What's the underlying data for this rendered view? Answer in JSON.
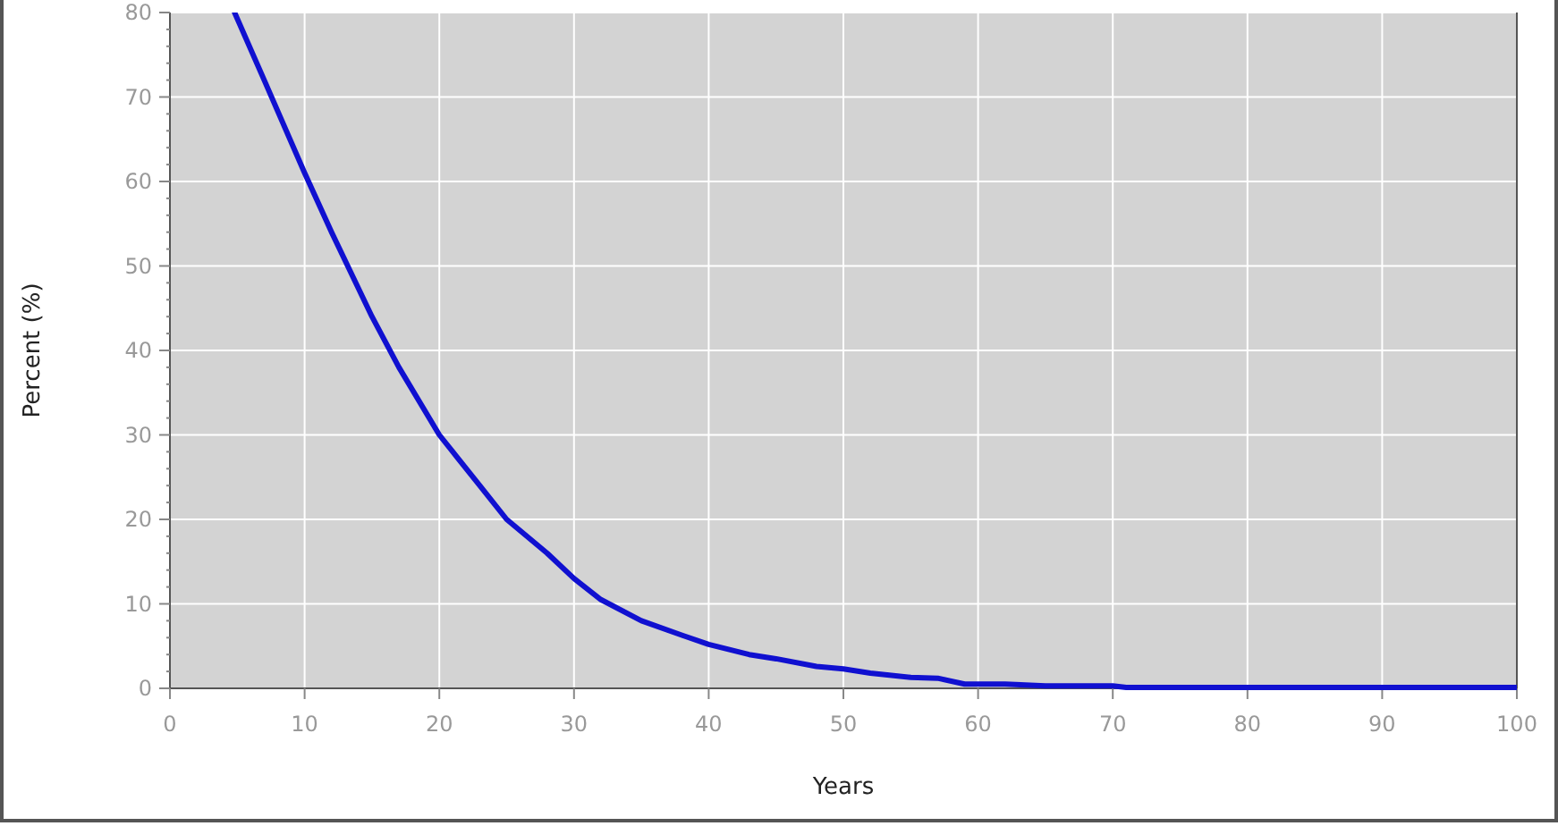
{
  "chart_data": {
    "type": "line",
    "xlabel": "Years",
    "ylabel": "Percent (%)",
    "xlim": [
      0,
      100
    ],
    "xticks": [
      0,
      10,
      20,
      30,
      40,
      50,
      60,
      70,
      80,
      90,
      100
    ],
    "ylim": [
      0,
      80
    ],
    "yticks": [
      0,
      10,
      20,
      30,
      40,
      50,
      60,
      70,
      80
    ],
    "grid": true,
    "series": [
      {
        "color": "#1010d0",
        "x": [
          4.8,
          7,
          10,
          12,
          15,
          17,
          20,
          23,
          25,
          28,
          30,
          32,
          35,
          38,
          40,
          43,
          45,
          48,
          50,
          52,
          55,
          57,
          59,
          62,
          65,
          70,
          71,
          80,
          90,
          100
        ],
        "values": [
          80,
          72,
          61,
          54,
          44,
          38,
          30,
          24,
          20,
          16,
          13,
          10.5,
          8,
          6.3,
          5.2,
          4,
          3.5,
          2.6,
          2.3,
          1.8,
          1.3,
          1.2,
          0.5,
          0.5,
          0.3,
          0.3,
          0.1,
          0.1,
          0.1,
          0.1
        ]
      }
    ]
  }
}
